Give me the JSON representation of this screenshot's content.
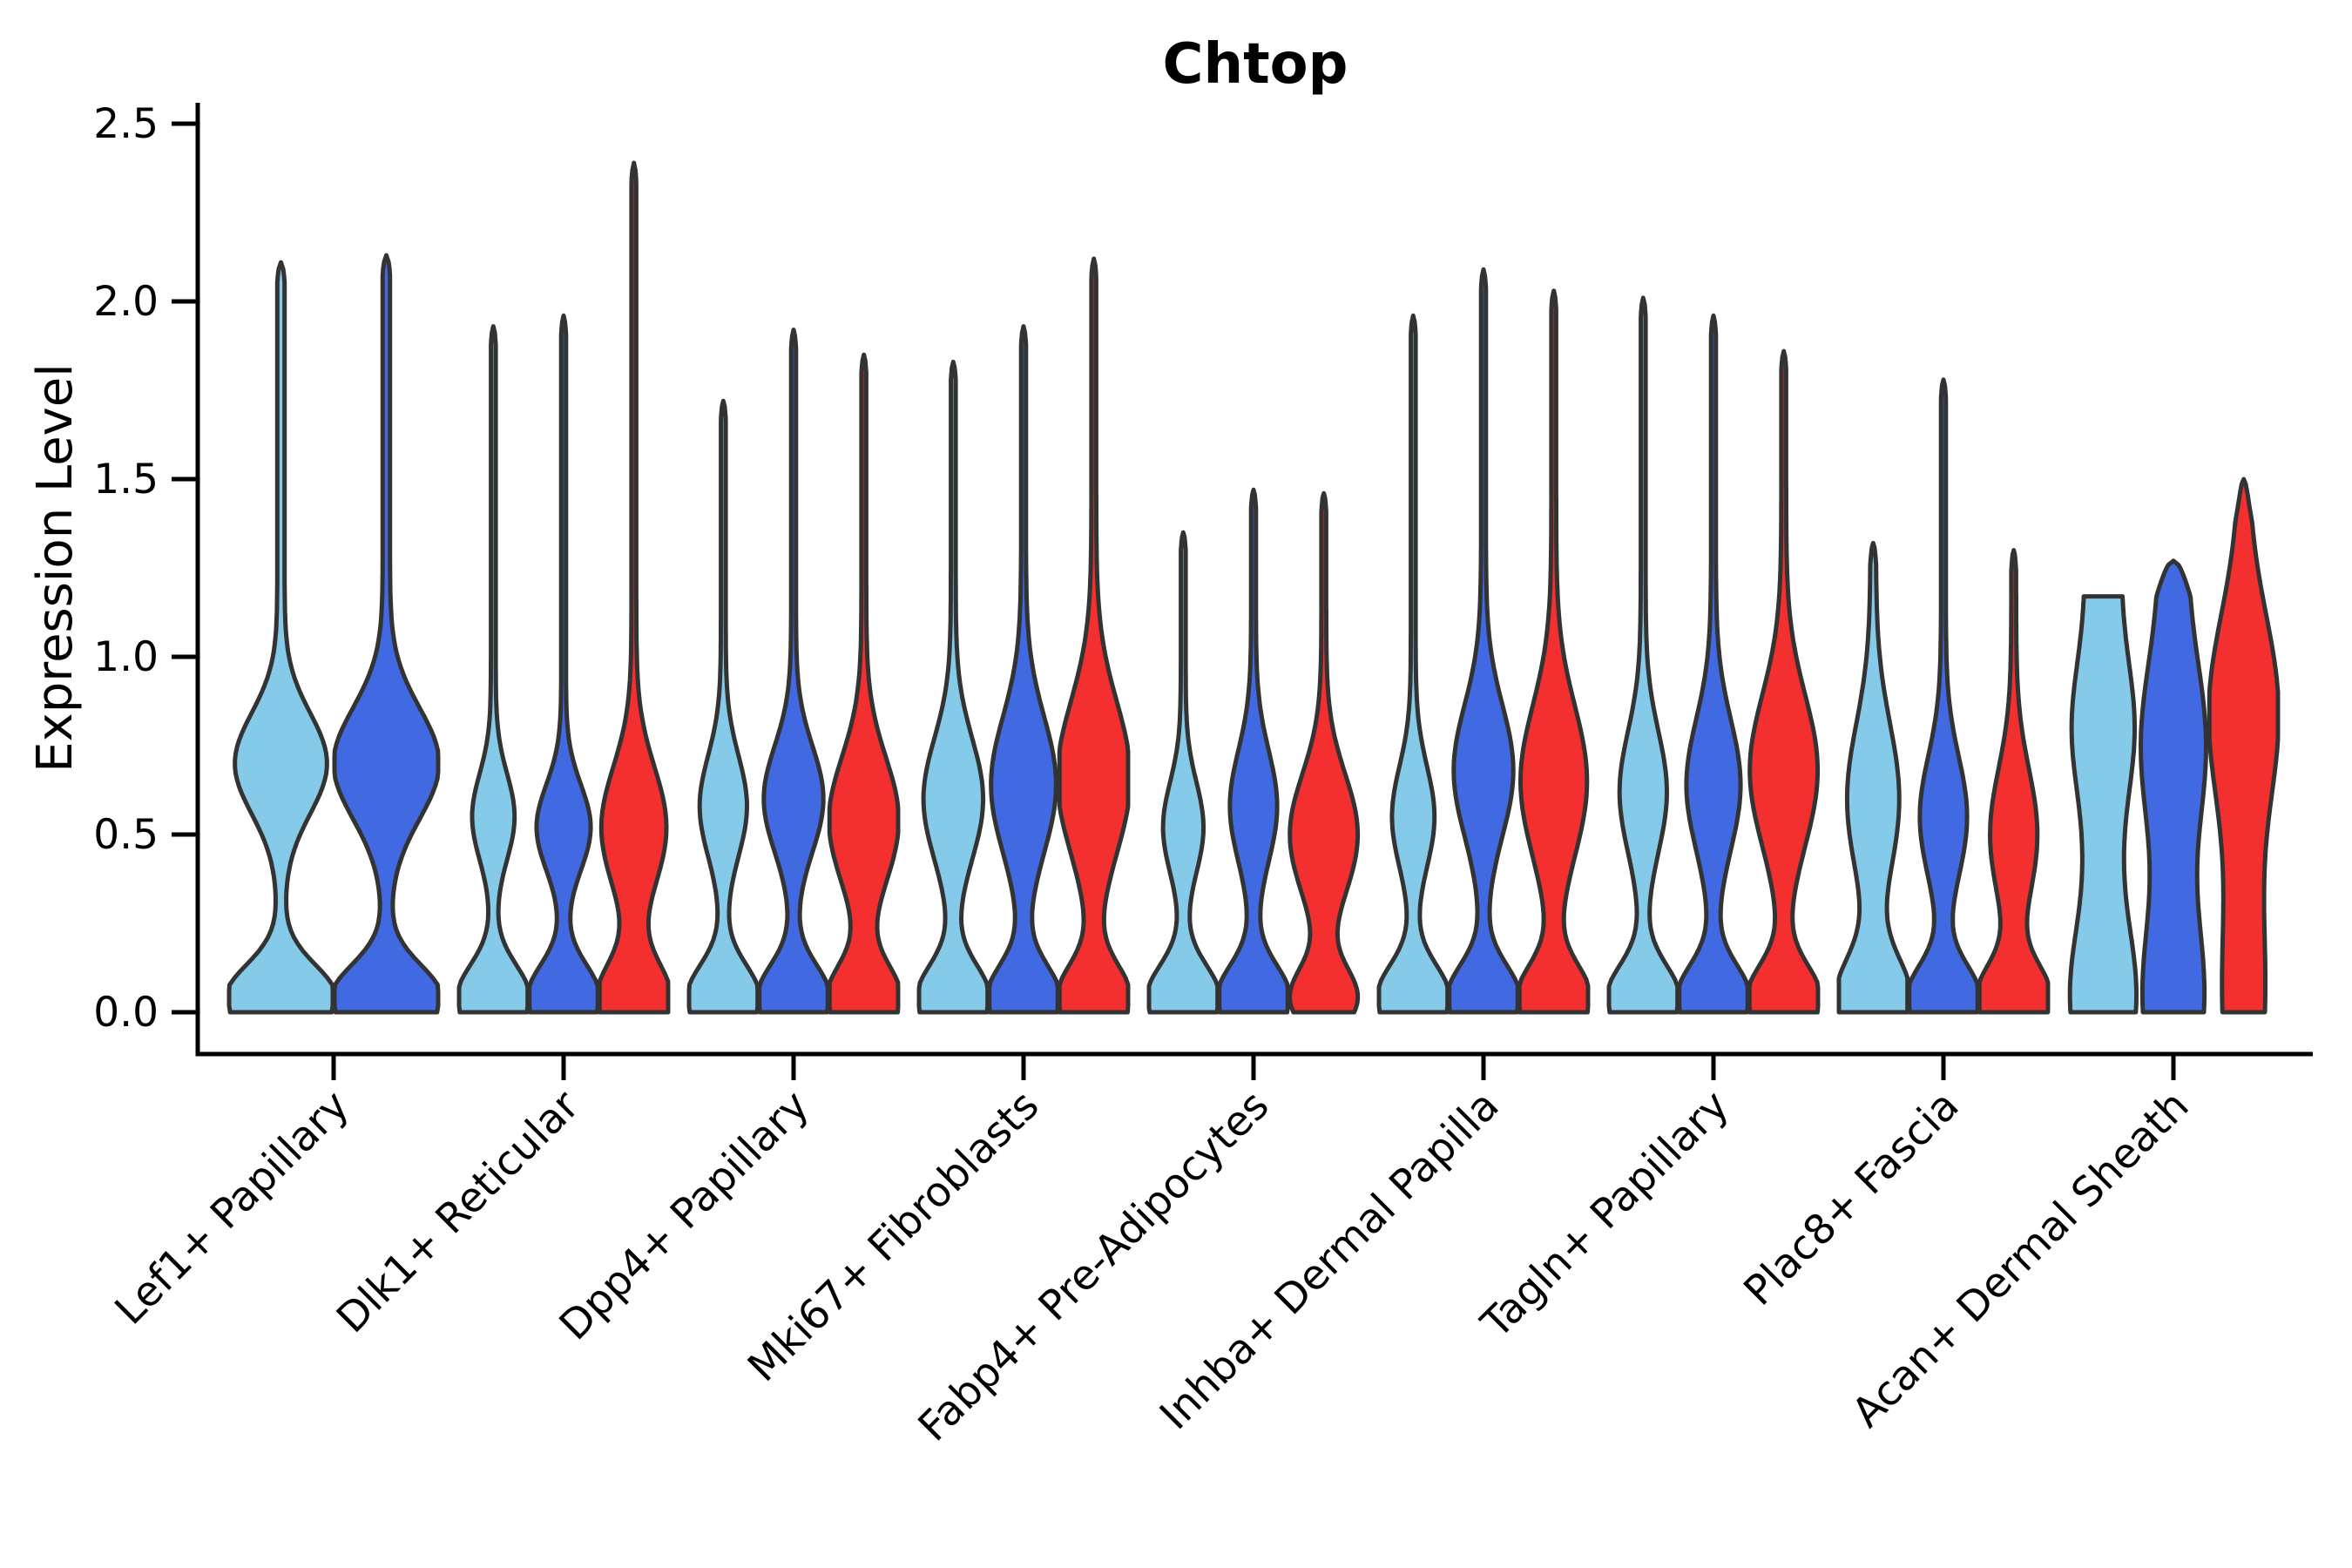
{
  "chart_data": {
    "type": "violin",
    "title": "Chtop",
    "ylabel": "Expression Level",
    "xlabel": "",
    "ylim": [
      0,
      2.5
    ],
    "grid": false,
    "legend": "none",
    "yticks": [
      {
        "value": 0.0,
        "label": "0.0"
      },
      {
        "value": 0.5,
        "label": "0.5"
      },
      {
        "value": 1.0,
        "label": "1.0"
      },
      {
        "value": 1.5,
        "label": "1.5"
      },
      {
        "value": 2.0,
        "label": "2.0"
      },
      {
        "value": 2.5,
        "label": "2.5"
      }
    ],
    "palette": {
      "light_blue": "#85CAE9",
      "dark_blue": "#4169E1",
      "red": "#F3302F",
      "outline": "#333333",
      "axis": "#000000"
    },
    "groups": [
      {
        "label": "Lef1+ Papillary",
        "violins": [
          {
            "series": "light_blue",
            "max": 2.11,
            "shape": {
              "cb": 0.04,
              "sb": 0.13,
              "ab": 1.0,
              "cm": 0.7,
              "sm": 0.2,
              "am": 0.82,
              "fl": 0.07,
              "taper": 0.05,
              "flat": false
            }
          },
          {
            "series": "dark_blue",
            "max": 2.13,
            "shape": {
              "cb": 0.04,
              "sb": 0.13,
              "ab": 1.0,
              "cm": 0.7,
              "sm": 0.22,
              "am": 0.95,
              "fl": 0.07,
              "taper": 0.05,
              "flat": false
            }
          }
        ]
      },
      {
        "label": "Dlk1+ Reticular",
        "violins": [
          {
            "series": "light_blue",
            "max": 1.93,
            "shape": {
              "cb": 0.04,
              "sb": 0.13,
              "ab": 1.0,
              "cm": 0.55,
              "sm": 0.17,
              "am": 0.55,
              "fl": 0.07,
              "taper": 0.05,
              "flat": false
            }
          },
          {
            "series": "dark_blue",
            "max": 1.96,
            "shape": {
              "cb": 0.04,
              "sb": 0.13,
              "ab": 1.0,
              "cm": 0.52,
              "sm": 0.17,
              "am": 0.72,
              "fl": 0.07,
              "taper": 0.05,
              "flat": false
            }
          },
          {
            "series": "red",
            "max": 2.39,
            "shape": {
              "cb": 0.04,
              "sb": 0.14,
              "ab": 1.0,
              "cm": 0.52,
              "sm": 0.24,
              "am": 0.88,
              "fl": 0.07,
              "taper": 0.05,
              "flat": false
            }
          }
        ]
      },
      {
        "label": "Dpp4+ Papillary",
        "violins": [
          {
            "series": "light_blue",
            "max": 1.72,
            "shape": {
              "cb": 0.04,
              "sb": 0.13,
              "ab": 1.0,
              "cm": 0.58,
              "sm": 0.2,
              "am": 0.62,
              "fl": 0.07,
              "taper": 0.05,
              "flat": false
            }
          },
          {
            "series": "dark_blue",
            "max": 1.92,
            "shape": {
              "cb": 0.04,
              "sb": 0.13,
              "ab": 1.0,
              "cm": 0.6,
              "sm": 0.21,
              "am": 0.8,
              "fl": 0.07,
              "taper": 0.05,
              "flat": false
            }
          },
          {
            "series": "red",
            "max": 1.85,
            "shape": {
              "cb": 0.04,
              "sb": 0.13,
              "ab": 1.0,
              "cm": 0.54,
              "sm": 0.25,
              "am": 0.95,
              "fl": 0.07,
              "taper": 0.05,
              "flat": false
            }
          }
        ]
      },
      {
        "label": "Mki67+ Fibroblasts",
        "violins": [
          {
            "series": "light_blue",
            "max": 1.83,
            "shape": {
              "cb": 0.04,
              "sb": 0.13,
              "ab": 1.0,
              "cm": 0.6,
              "sm": 0.24,
              "am": 0.8,
              "fl": 0.07,
              "taper": 0.05,
              "flat": false
            }
          },
          {
            "series": "dark_blue",
            "max": 1.93,
            "shape": {
              "cb": 0.04,
              "sb": 0.13,
              "ab": 1.0,
              "cm": 0.64,
              "sm": 0.27,
              "am": 0.88,
              "fl": 0.07,
              "taper": 0.05,
              "flat": false
            }
          },
          {
            "series": "red",
            "max": 2.12,
            "shape": {
              "cb": 0.04,
              "sb": 0.13,
              "ab": 1.0,
              "cm": 0.66,
              "sm": 0.3,
              "am": 1.0,
              "fl": 0.07,
              "taper": 0.05,
              "flat": false
            }
          }
        ]
      },
      {
        "label": "Fabp4+ Pre-Adipocytes",
        "violins": [
          {
            "series": "light_blue",
            "max": 1.35,
            "shape": {
              "cb": 0.04,
              "sb": 0.13,
              "ab": 1.0,
              "cm": 0.52,
              "sm": 0.18,
              "am": 0.52,
              "fl": 0.07,
              "taper": 0.05,
              "flat": false
            }
          },
          {
            "series": "dark_blue",
            "max": 1.47,
            "shape": {
              "cb": 0.04,
              "sb": 0.13,
              "ab": 1.0,
              "cm": 0.58,
              "sm": 0.22,
              "am": 0.62,
              "fl": 0.07,
              "taper": 0.05,
              "flat": false
            }
          },
          {
            "series": "red",
            "max": 1.46,
            "shape": {
              "cb": 0.04,
              "sb": 0.12,
              "ab": 0.9,
              "cm": 0.5,
              "sm": 0.24,
              "am": 0.92,
              "fl": 0.07,
              "taper": 0.05,
              "flat": false
            }
          }
        ]
      },
      {
        "label": "Inhba+ Dermal Papilla",
        "violins": [
          {
            "series": "light_blue",
            "max": 1.96,
            "shape": {
              "cb": 0.04,
              "sb": 0.13,
              "ab": 1.0,
              "cm": 0.55,
              "sm": 0.2,
              "am": 0.55,
              "fl": 0.07,
              "taper": 0.05,
              "flat": false
            }
          },
          {
            "series": "dark_blue",
            "max": 2.09,
            "shape": {
              "cb": 0.04,
              "sb": 0.13,
              "ab": 1.0,
              "cm": 0.68,
              "sm": 0.26,
              "am": 0.8,
              "fl": 0.07,
              "taper": 0.05,
              "flat": false
            }
          },
          {
            "series": "red",
            "max": 2.03,
            "shape": {
              "cb": 0.04,
              "sb": 0.13,
              "ab": 1.0,
              "cm": 0.65,
              "sm": 0.3,
              "am": 0.9,
              "fl": 0.07,
              "taper": 0.05,
              "flat": false
            }
          }
        ]
      },
      {
        "label": "Tagln+ Papillary",
        "violins": [
          {
            "series": "light_blue",
            "max": 2.01,
            "shape": {
              "cb": 0.04,
              "sb": 0.13,
              "ab": 1.0,
              "cm": 0.62,
              "sm": 0.24,
              "am": 0.62,
              "fl": 0.07,
              "taper": 0.05,
              "flat": false
            }
          },
          {
            "series": "dark_blue",
            "max": 1.96,
            "shape": {
              "cb": 0.04,
              "sb": 0.13,
              "ab": 1.0,
              "cm": 0.64,
              "sm": 0.26,
              "am": 0.72,
              "fl": 0.07,
              "taper": 0.05,
              "flat": false
            }
          },
          {
            "series": "red",
            "max": 1.86,
            "shape": {
              "cb": 0.04,
              "sb": 0.13,
              "ab": 1.0,
              "cm": 0.68,
              "sm": 0.3,
              "am": 0.92,
              "fl": 0.07,
              "taper": 0.05,
              "flat": false
            }
          }
        ]
      },
      {
        "label": "Plac8+ Fascia",
        "violins": [
          {
            "series": "light_blue",
            "max": 1.32,
            "shape": {
              "cb": 0.04,
              "sb": 0.16,
              "ab": 1.0,
              "cm": 0.6,
              "sm": 0.3,
              "am": 0.68,
              "fl": 0.08,
              "taper": 0.06,
              "flat": false
            }
          },
          {
            "series": "dark_blue",
            "max": 1.78,
            "shape": {
              "cb": 0.04,
              "sb": 0.13,
              "ab": 1.0,
              "cm": 0.55,
              "sm": 0.24,
              "am": 0.62,
              "fl": 0.07,
              "taper": 0.05,
              "flat": false
            }
          },
          {
            "series": "red",
            "max": 1.3,
            "shape": {
              "cb": 0.04,
              "sb": 0.13,
              "ab": 1.0,
              "cm": 0.5,
              "sm": 0.26,
              "am": 0.62,
              "fl": 0.07,
              "taper": 0.06,
              "flat": false
            }
          }
        ]
      },
      {
        "label": "Acan+ Dermal Sheath",
        "violins": [
          {
            "series": "light_blue",
            "max": 1.17,
            "shape": {
              "cb": 0.05,
              "sb": 0.25,
              "ab": 0.45,
              "cm": 0.8,
              "sm": 0.25,
              "am": 0.4,
              "fl": 0.52,
              "taper": 0.0,
              "flat": true
            }
          },
          {
            "series": "dark_blue",
            "max": 1.27,
            "shape": {
              "cb": 0.05,
              "sb": 0.3,
              "ab": 0.5,
              "cm": 0.75,
              "sm": 0.32,
              "am": 0.55,
              "fl": 0.4,
              "taper": 0.1,
              "flat": false
            }
          },
          {
            "series": "red",
            "max": 1.5,
            "shape": {
              "cb": 0.05,
              "sb": 0.45,
              "ab": 0.5,
              "cm": 0.85,
              "sm": 0.38,
              "am": 0.88,
              "fl": 0.12,
              "taper": 0.12,
              "flat": false
            }
          }
        ]
      }
    ]
  }
}
